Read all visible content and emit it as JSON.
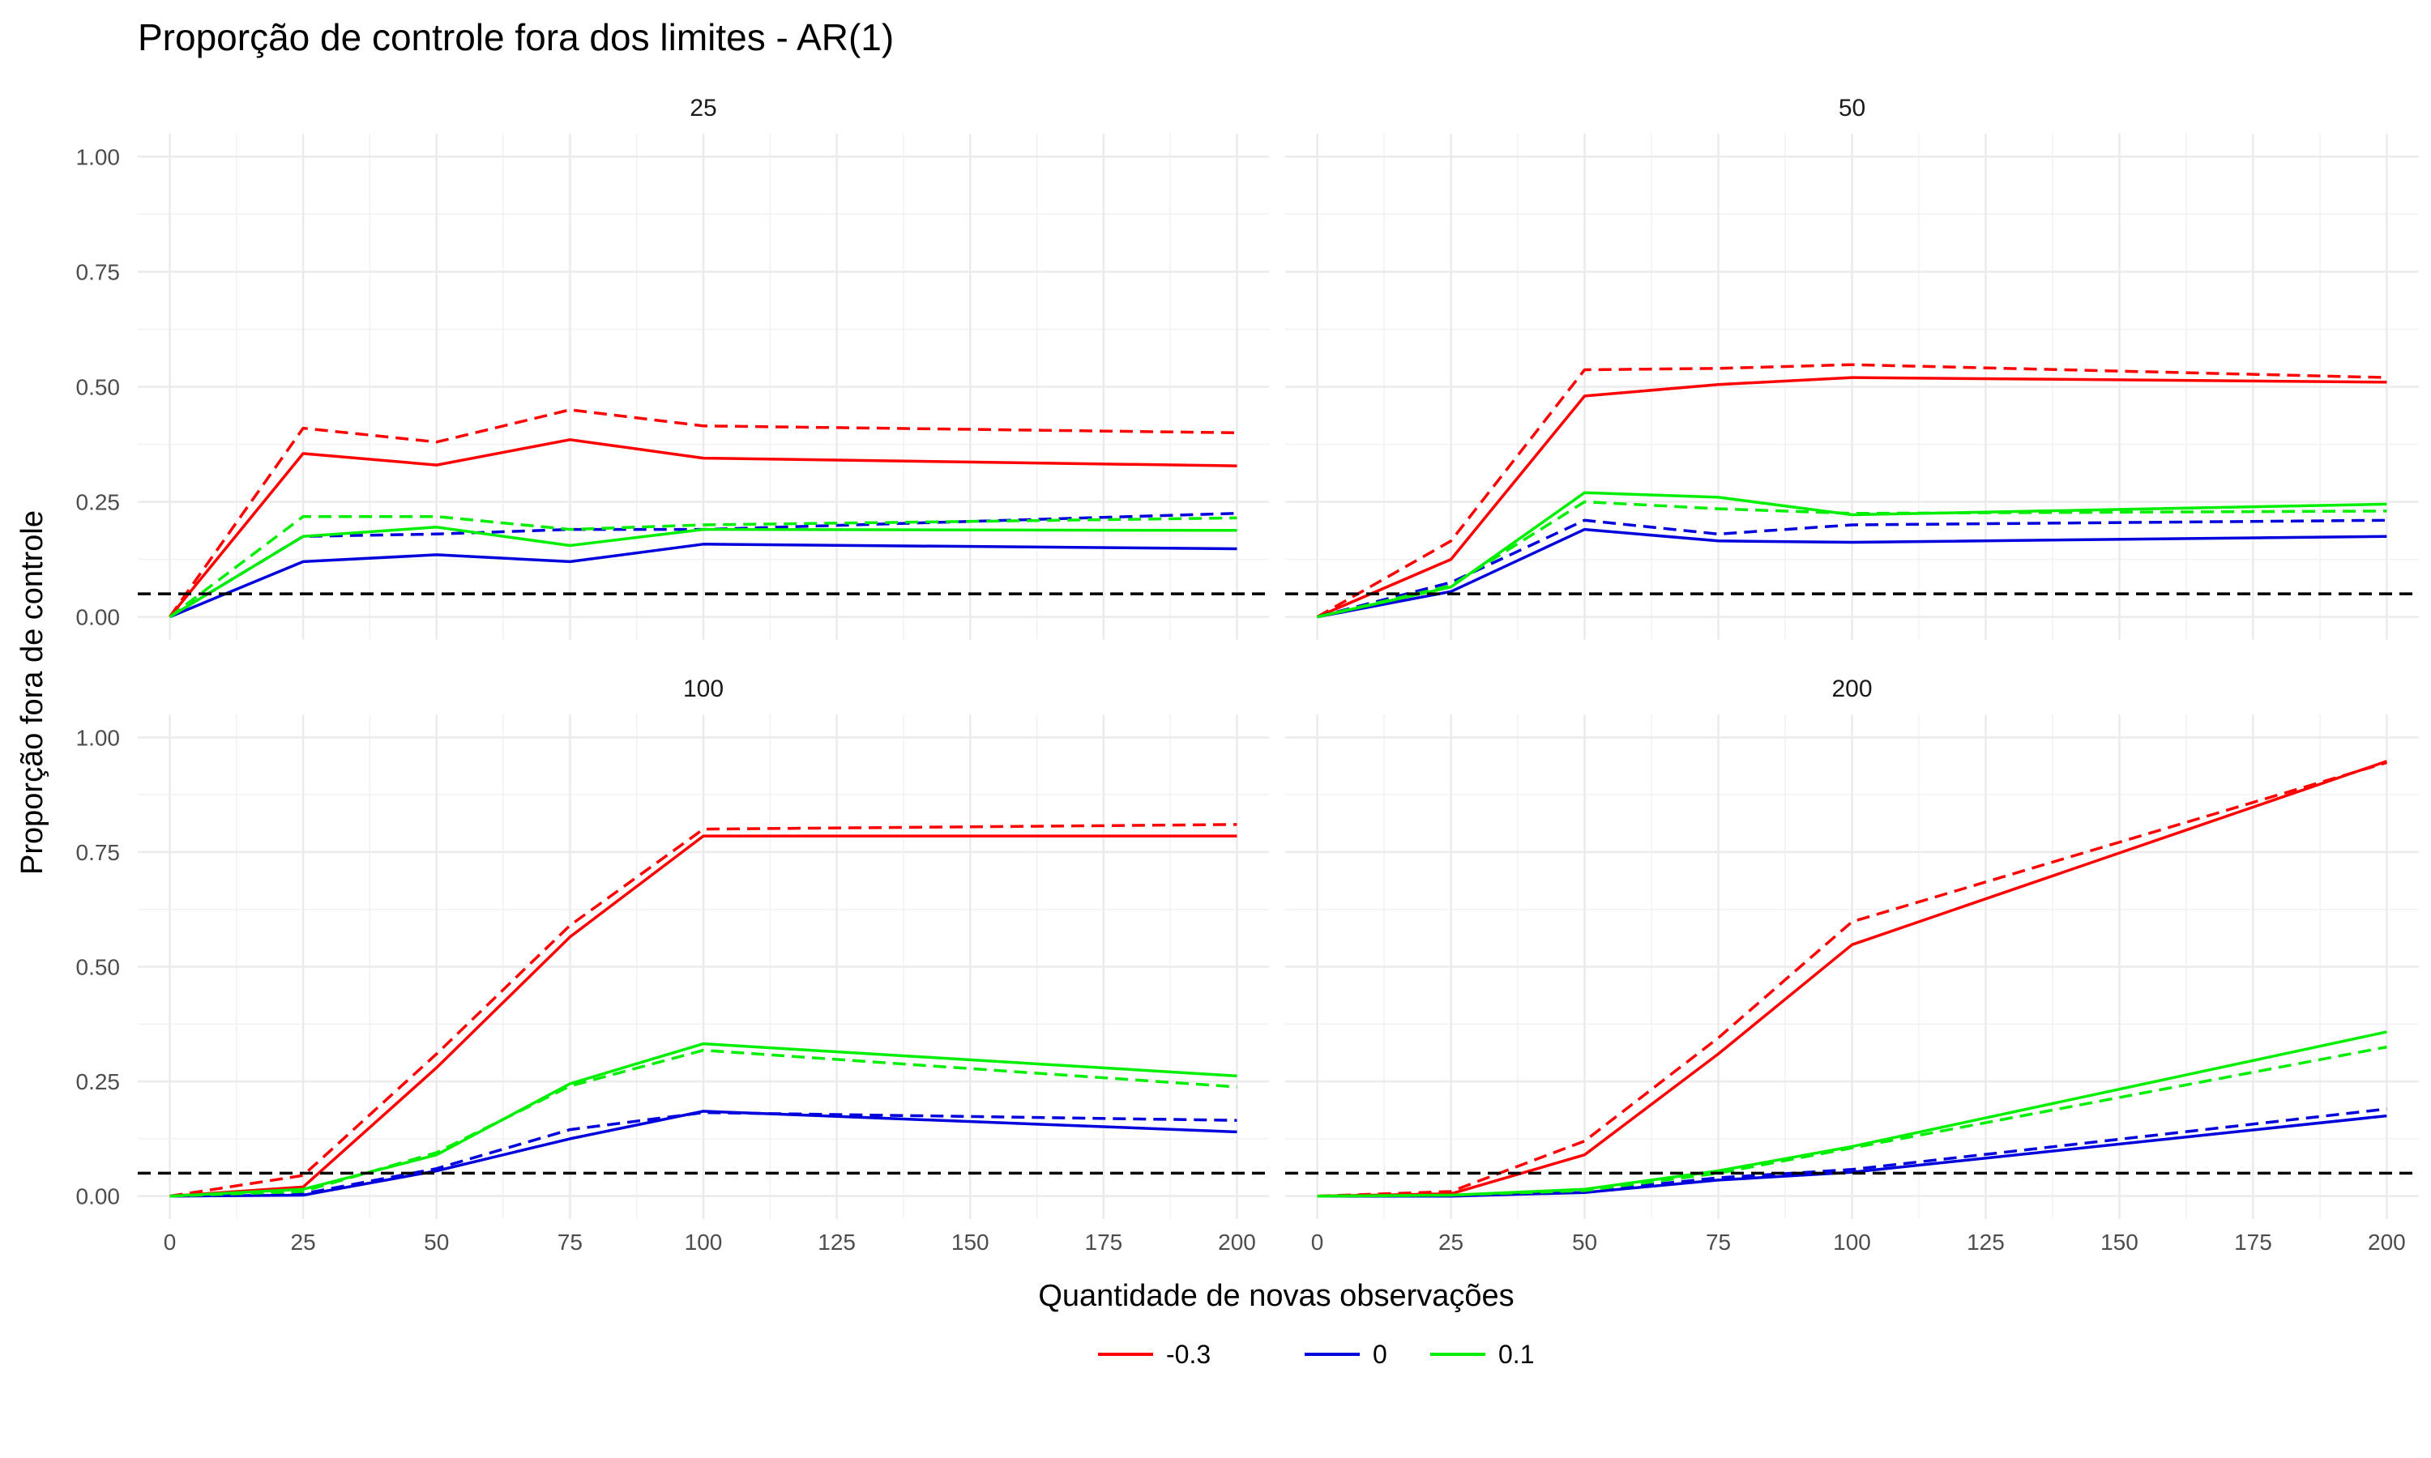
{
  "chart_data": {
    "type": "line",
    "title": "Proporção de controle fora dos limites - AR(1)",
    "xlabel": "Quantidade de novas observações",
    "ylabel": "Proporção fora de controle",
    "x_ticks": [
      0,
      25,
      50,
      75,
      100,
      125,
      150,
      175,
      200
    ],
    "y_ticks": [
      0.0,
      0.25,
      0.5,
      0.75,
      1.0
    ],
    "y_tick_labels": [
      "0.00",
      "0.25",
      "0.50",
      "0.75",
      "1.00"
    ],
    "xlim": [
      -6,
      206
    ],
    "ylim": [
      -0.05,
      1.05
    ],
    "reference_line": 0.05,
    "grid": true,
    "legend_position": "bottom",
    "legend": [
      {
        "label": "-0.3",
        "color": "#ff0000"
      },
      {
        "label": "0",
        "color": "#0000dd"
      },
      {
        "label": "0.1",
        "color": "#00ee00"
      }
    ],
    "x": [
      0,
      25,
      50,
      75,
      100,
      200
    ],
    "panels": [
      {
        "label": "25",
        "series": [
          {
            "group": "-0.3",
            "linetype": "solid",
            "values": [
              0,
              0.355,
              0.33,
              0.385,
              0.345,
              0.328
            ]
          },
          {
            "group": "-0.3",
            "linetype": "dashed",
            "values": [
              0,
              0.41,
              0.38,
              0.45,
              0.415,
              0.4
            ]
          },
          {
            "group": "0",
            "linetype": "solid",
            "values": [
              0,
              0.12,
              0.135,
              0.12,
              0.158,
              0.148
            ]
          },
          {
            "group": "0",
            "linetype": "dashed",
            "values": [
              0,
              0.175,
              0.18,
              0.19,
              0.19,
              0.225
            ]
          },
          {
            "group": "0.1",
            "linetype": "solid",
            "values": [
              0,
              0.175,
              0.195,
              0.155,
              0.19,
              0.188
            ]
          },
          {
            "group": "0.1",
            "linetype": "dashed",
            "values": [
              0,
              0.218,
              0.218,
              0.19,
              0.2,
              0.215
            ]
          }
        ]
      },
      {
        "label": "50",
        "series": [
          {
            "group": "-0.3",
            "linetype": "solid",
            "values": [
              0,
              0.125,
              0.48,
              0.505,
              0.52,
              0.51
            ]
          },
          {
            "group": "-0.3",
            "linetype": "dashed",
            "values": [
              0,
              0.165,
              0.537,
              0.54,
              0.548,
              0.52
            ]
          },
          {
            "group": "0",
            "linetype": "solid",
            "values": [
              0,
              0.055,
              0.19,
              0.165,
              0.162,
              0.175
            ]
          },
          {
            "group": "0",
            "linetype": "dashed",
            "values": [
              0,
              0.075,
              0.21,
              0.18,
              0.2,
              0.21
            ]
          },
          {
            "group": "0.1",
            "linetype": "solid",
            "values": [
              0,
              0.065,
              0.27,
              0.26,
              0.222,
              0.245
            ]
          },
          {
            "group": "0.1",
            "linetype": "dashed",
            "values": [
              0,
              0.068,
              0.25,
              0.235,
              0.225,
              0.23
            ]
          }
        ]
      },
      {
        "label": "100",
        "series": [
          {
            "group": "-0.3",
            "linetype": "solid",
            "values": [
              0,
              0.02,
              0.28,
              0.565,
              0.785,
              0.785
            ]
          },
          {
            "group": "-0.3",
            "linetype": "dashed",
            "values": [
              0,
              0.045,
              0.31,
              0.59,
              0.8,
              0.81
            ]
          },
          {
            "group": "0",
            "linetype": "solid",
            "values": [
              0,
              0.002,
              0.055,
              0.125,
              0.185,
              0.14
            ]
          },
          {
            "group": "0",
            "linetype": "dashed",
            "values": [
              0,
              0.005,
              0.06,
              0.145,
              0.182,
              0.165
            ]
          },
          {
            "group": "0.1",
            "linetype": "solid",
            "values": [
              0,
              0.015,
              0.09,
              0.245,
              0.332,
              0.262
            ]
          },
          {
            "group": "0.1",
            "linetype": "dashed",
            "values": [
              0,
              0.01,
              0.095,
              0.24,
              0.318,
              0.238
            ]
          }
        ]
      },
      {
        "label": "200",
        "series": [
          {
            "group": "-0.3",
            "linetype": "solid",
            "values": [
              0,
              0.005,
              0.09,
              0.31,
              0.548,
              0.948
            ]
          },
          {
            "group": "-0.3",
            "linetype": "dashed",
            "values": [
              0,
              0.01,
              0.12,
              0.345,
              0.598,
              0.945
            ]
          },
          {
            "group": "0",
            "linetype": "solid",
            "values": [
              0,
              0.0,
              0.008,
              0.035,
              0.052,
              0.175
            ]
          },
          {
            "group": "0",
            "linetype": "dashed",
            "values": [
              0,
              0.0,
              0.01,
              0.04,
              0.058,
              0.19
            ]
          },
          {
            "group": "0.1",
            "linetype": "solid",
            "values": [
              0,
              0.002,
              0.015,
              0.055,
              0.108,
              0.358
            ]
          },
          {
            "group": "0.1",
            "linetype": "dashed",
            "values": [
              0,
              0.002,
              0.012,
              0.05,
              0.105,
              0.325
            ]
          }
        ]
      }
    ]
  }
}
